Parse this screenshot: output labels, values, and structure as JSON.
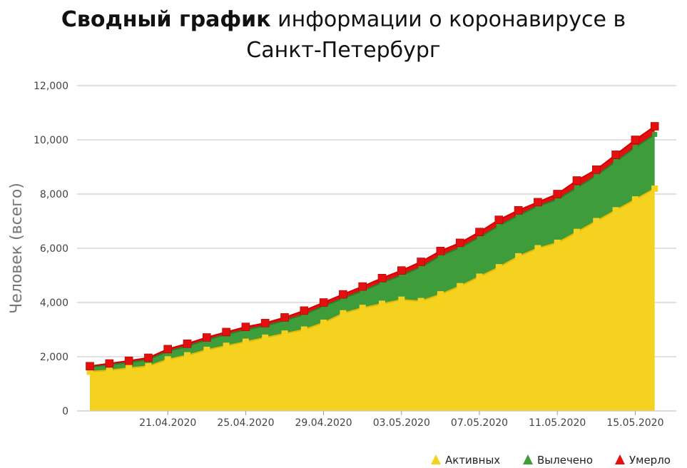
{
  "chart_data": {
    "type": "area",
    "title_bold": "Сводный график",
    "title_rest": " информации о коронавирусе в",
    "title_line2": "Санкт-Петербург",
    "ylabel": "Человек (всего)",
    "ylim": [
      0,
      12000
    ],
    "y_ticks": [
      "0",
      "2,000",
      "4,000",
      "6,000",
      "8,000",
      "10,000",
      "12,000"
    ],
    "y_tick_values": [
      0,
      2000,
      4000,
      6000,
      8000,
      10000,
      12000
    ],
    "x": [
      "17.04.2020",
      "18.04.2020",
      "19.04.2020",
      "20.04.2020",
      "21.04.2020",
      "22.04.2020",
      "23.04.2020",
      "24.04.2020",
      "25.04.2020",
      "26.04.2020",
      "27.04.2020",
      "28.04.2020",
      "29.04.2020",
      "30.04.2020",
      "01.05.2020",
      "02.05.2020",
      "03.05.2020",
      "04.05.2020",
      "05.05.2020",
      "06.05.2020",
      "07.05.2020",
      "08.05.2020",
      "09.05.2020",
      "10.05.2020",
      "11.05.2020",
      "12.05.2020",
      "13.05.2020",
      "14.05.2020",
      "15.05.2020",
      "16.05.2020",
      "17.05.2020",
      "18.05.2020"
    ],
    "x_tick_labels": [
      "21.04.2020",
      "25.04.2020",
      "29.04.2020",
      "03.05.2020",
      "07.05.2020",
      "11.05.2020",
      "15.05.2020"
    ],
    "x_tick_index": [
      4,
      8,
      12,
      16,
      20,
      24,
      28
    ],
    "stacked": true,
    "grid": true,
    "legend_position": "bottom-right",
    "series": [
      {
        "name": "Активных",
        "color": "#f5d21f",
        "values": [
          1450,
          1500,
          1580,
          1650,
          1900,
          2050,
          2250,
          2400,
          2550,
          2700,
          2850,
          3000,
          3250,
          3600,
          3800,
          3950,
          4100,
          4050,
          4300,
          4600,
          4950,
          5300,
          5700,
          6000,
          6200,
          6600,
          7000,
          7400,
          7800,
          8200,
          null,
          null
        ]
      },
      {
        "name": "Вылечено",
        "color": "#3e9c3a",
        "values": [
          170,
          200,
          210,
          240,
          300,
          340,
          370,
          420,
          450,
          440,
          480,
          560,
          610,
          550,
          630,
          780,
          900,
          1250,
          1420,
          1420,
          1450,
          1530,
          1510,
          1550,
          1600,
          1630,
          1680,
          1800,
          1920,
          2000,
          null,
          null
        ]
      },
      {
        "name": "Умерло",
        "color": "#e31010",
        "values": [
          30,
          50,
          60,
          70,
          80,
          90,
          90,
          90,
          100,
          100,
          120,
          140,
          140,
          150,
          160,
          170,
          180,
          200,
          180,
          180,
          200,
          220,
          190,
          150,
          200,
          270,
          220,
          250,
          280,
          300,
          null,
          null
        ]
      }
    ]
  }
}
